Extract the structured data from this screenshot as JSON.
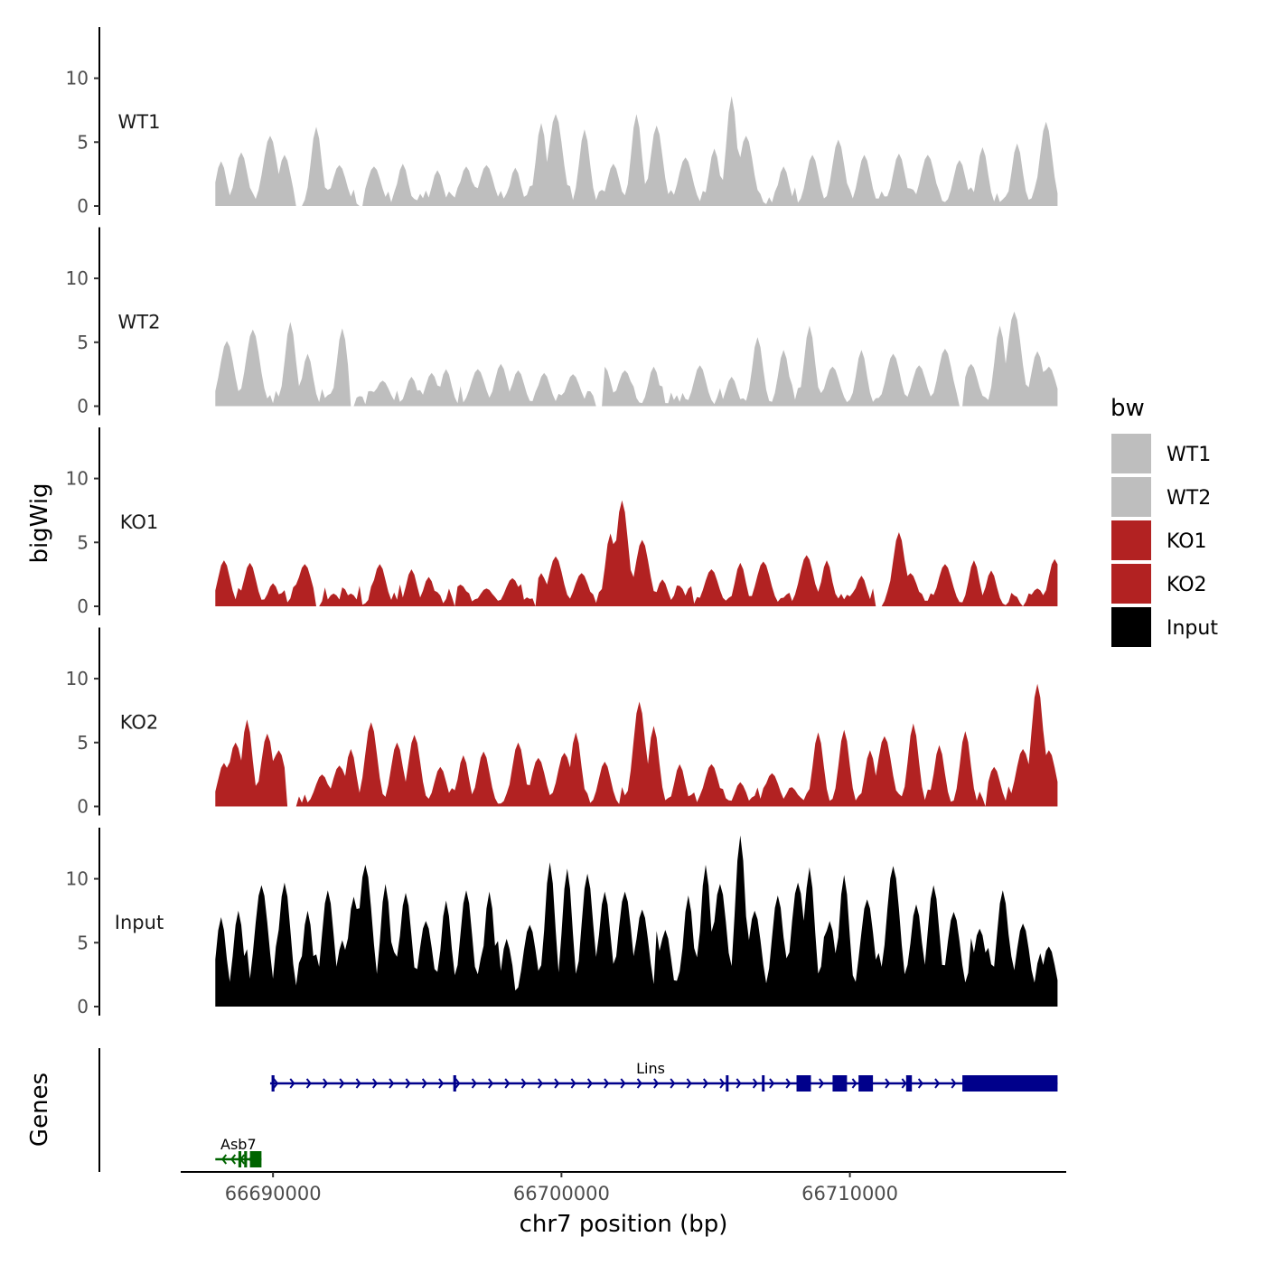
{
  "chart_data": {
    "type": "area",
    "title": "",
    "ylabel": "bigWig",
    "xlabel": "chr7 position (bp)",
    "xlim": [
      66686800,
      66717500
    ],
    "x_range_data": [
      66688000,
      66717200
    ],
    "ylim": [
      0,
      14
    ],
    "yticks": [
      0,
      5,
      10
    ],
    "xticks": [
      66690000,
      66700000,
      66710000
    ],
    "xtick_labels": [
      "66690000",
      "66700000",
      "66710000"
    ],
    "legend": {
      "title": "bw",
      "position": "right",
      "entries": [
        {
          "label": "WT1",
          "color": "#bebebe"
        },
        {
          "label": "WT2",
          "color": "#bebebe"
        },
        {
          "label": "KO1",
          "color": "#b22222"
        },
        {
          "label": "KO2",
          "color": "#b22222"
        },
        {
          "label": "Input",
          "color": "#000000"
        }
      ]
    },
    "tracks": [
      {
        "name": "WT1",
        "color": "#bebebe",
        "peaks": [
          [
            66688200,
            3.5
          ],
          [
            66688900,
            4.2
          ],
          [
            66689900,
            5.5
          ],
          [
            66690400,
            4.0
          ],
          [
            66691500,
            6.2
          ],
          [
            66692300,
            3.2
          ],
          [
            66693500,
            3.1
          ],
          [
            66694500,
            3.3
          ],
          [
            66695700,
            2.8
          ],
          [
            66696700,
            3.1
          ],
          [
            66697400,
            3.2
          ],
          [
            66698400,
            3.0
          ],
          [
            66699300,
            6.5
          ],
          [
            66699800,
            7.2
          ],
          [
            66700800,
            6.0
          ],
          [
            66701800,
            3.3
          ],
          [
            66702600,
            7.2
          ],
          [
            66703300,
            6.3
          ],
          [
            66704300,
            3.8
          ],
          [
            66705300,
            4.5
          ],
          [
            66705900,
            8.6
          ],
          [
            66706400,
            5.5
          ],
          [
            66707700,
            3.1
          ],
          [
            66708700,
            4.0
          ],
          [
            66709600,
            5.2
          ],
          [
            66710500,
            4.0
          ],
          [
            66711700,
            4.1
          ],
          [
            66712700,
            4.0
          ],
          [
            66713800,
            3.6
          ],
          [
            66714600,
            4.6
          ],
          [
            66715800,
            4.9
          ],
          [
            66716800,
            6.6
          ]
        ],
        "gaps": [
          [
            66690700,
            66691100
          ],
          [
            66692900,
            66693200
          ]
        ]
      },
      {
        "name": "WT2",
        "color": "#bebebe",
        "peaks": [
          [
            66688400,
            5.1
          ],
          [
            66689300,
            6.0
          ],
          [
            66690600,
            6.6
          ],
          [
            66691200,
            4.1
          ],
          [
            66692400,
            6.1
          ],
          [
            66693800,
            2.0
          ],
          [
            66694800,
            2.3
          ],
          [
            66695500,
            2.6
          ],
          [
            66696000,
            2.9
          ],
          [
            66697100,
            2.9
          ],
          [
            66697900,
            3.3
          ],
          [
            66698500,
            2.8
          ],
          [
            66699400,
            2.6
          ],
          [
            66700400,
            2.5
          ],
          [
            66701500,
            3.1
          ],
          [
            66702200,
            2.8
          ],
          [
            66703200,
            3.1
          ],
          [
            66704800,
            3.2
          ],
          [
            66705900,
            2.3
          ],
          [
            66706800,
            5.4
          ],
          [
            66707700,
            4.4
          ],
          [
            66708600,
            6.3
          ],
          [
            66709400,
            3.1
          ],
          [
            66710400,
            4.4
          ],
          [
            66711500,
            4.1
          ],
          [
            66712400,
            3.2
          ],
          [
            66713300,
            4.5
          ],
          [
            66714200,
            3.3
          ],
          [
            66715200,
            6.3
          ],
          [
            66715700,
            7.4
          ],
          [
            66716500,
            4.3
          ],
          [
            66716900,
            3.1
          ]
        ],
        "gaps": [
          [
            66690000,
            66690000
          ],
          [
            66692600,
            66692900
          ],
          [
            66701100,
            66701500
          ],
          [
            66713700,
            66714000
          ]
        ]
      },
      {
        "name": "KO1",
        "color": "#b22222",
        "peaks": [
          [
            66688300,
            3.6
          ],
          [
            66689200,
            3.4
          ],
          [
            66690000,
            1.8
          ],
          [
            66690900,
            2.0
          ],
          [
            66691100,
            3.3
          ],
          [
            66692100,
            1.0
          ],
          [
            66692700,
            1.0
          ],
          [
            66693700,
            3.3
          ],
          [
            66694800,
            2.9
          ],
          [
            66695400,
            2.3
          ],
          [
            66696500,
            1.7
          ],
          [
            66697400,
            1.4
          ],
          [
            66698300,
            2.2
          ],
          [
            66699300,
            2.6
          ],
          [
            66699800,
            3.9
          ],
          [
            66700700,
            2.6
          ],
          [
            66701700,
            5.7
          ],
          [
            66702100,
            8.3
          ],
          [
            66702800,
            5.2
          ],
          [
            66703500,
            2.1
          ],
          [
            66704100,
            1.6
          ],
          [
            66705200,
            2.9
          ],
          [
            66706200,
            3.4
          ],
          [
            66707000,
            3.5
          ],
          [
            66708500,
            4.0
          ],
          [
            66709200,
            3.6
          ],
          [
            66710400,
            2.4
          ],
          [
            66711700,
            5.8
          ],
          [
            66712100,
            2.6
          ],
          [
            66713300,
            3.3
          ],
          [
            66714300,
            3.6
          ],
          [
            66714900,
            2.8
          ],
          [
            66716500,
            1.4
          ],
          [
            66717100,
            3.7
          ]
        ],
        "gaps": [
          [
            66691400,
            66691700
          ],
          [
            66693000,
            66693100
          ],
          [
            66696200,
            66696400
          ],
          [
            66699000,
            66699200
          ],
          [
            66710800,
            66711200
          ],
          [
            66715900,
            66716100
          ]
        ]
      },
      {
        "name": "KO2",
        "color": "#b22222",
        "peaks": [
          [
            66688300,
            3.4
          ],
          [
            66688700,
            5.0
          ],
          [
            66689100,
            6.8
          ],
          [
            66689800,
            5.7
          ],
          [
            66690200,
            4.4
          ],
          [
            66691700,
            2.5
          ],
          [
            66692300,
            3.2
          ],
          [
            66692700,
            4.5
          ],
          [
            66693400,
            6.6
          ],
          [
            66694300,
            5.0
          ],
          [
            66694900,
            5.6
          ],
          [
            66695800,
            3.1
          ],
          [
            66696600,
            4.0
          ],
          [
            66697300,
            4.3
          ],
          [
            66698500,
            5.0
          ],
          [
            66699200,
            3.8
          ],
          [
            66700100,
            4.2
          ],
          [
            66700500,
            5.8
          ],
          [
            66701500,
            3.5
          ],
          [
            66702700,
            8.2
          ],
          [
            66703200,
            6.3
          ],
          [
            66704100,
            3.3
          ],
          [
            66705200,
            3.3
          ],
          [
            66706200,
            1.9
          ],
          [
            66707300,
            2.6
          ],
          [
            66708000,
            1.5
          ],
          [
            66708900,
            5.8
          ],
          [
            66709800,
            6.0
          ],
          [
            66710700,
            4.4
          ],
          [
            66711200,
            5.5
          ],
          [
            66712200,
            6.5
          ],
          [
            66713100,
            4.8
          ],
          [
            66714000,
            5.9
          ],
          [
            66715000,
            3.1
          ],
          [
            66716000,
            4.5
          ],
          [
            66716500,
            9.6
          ],
          [
            66716900,
            4.4
          ]
        ],
        "gaps": [
          [
            66690400,
            66690900
          ],
          [
            66708700,
            66708800
          ],
          [
            66714600,
            66714800
          ]
        ]
      },
      {
        "name": "Input",
        "color": "#000000",
        "peaks": [
          [
            66688200,
            7.0
          ],
          [
            66688800,
            7.5
          ],
          [
            66689600,
            9.5
          ],
          [
            66690400,
            9.7
          ],
          [
            66690600,
            3.0
          ],
          [
            66691200,
            7.5
          ],
          [
            66691900,
            9.1
          ],
          [
            66692400,
            5.2
          ],
          [
            66692800,
            8.6
          ],
          [
            66693200,
            11.1
          ],
          [
            66693900,
            9.6
          ],
          [
            66694600,
            8.9
          ],
          [
            66695300,
            6.7
          ],
          [
            66696000,
            8.3
          ],
          [
            66696700,
            9.1
          ],
          [
            66697500,
            9.0
          ],
          [
            66698100,
            5.3
          ],
          [
            66698900,
            6.4
          ],
          [
            66699600,
            11.3
          ],
          [
            66700200,
            10.8
          ],
          [
            66700900,
            10.4
          ],
          [
            66701500,
            9.0
          ],
          [
            66702200,
            9.0
          ],
          [
            66702800,
            7.6
          ],
          [
            66703600,
            6.0
          ],
          [
            66704400,
            8.7
          ],
          [
            66705000,
            11.1
          ],
          [
            66705500,
            9.6
          ],
          [
            66706200,
            13.4
          ],
          [
            66706700,
            7.5
          ],
          [
            66707500,
            8.7
          ],
          [
            66708200,
            9.7
          ],
          [
            66708600,
            10.9
          ],
          [
            66709300,
            6.7
          ],
          [
            66709800,
            10.3
          ],
          [
            66710600,
            8.4
          ],
          [
            66711500,
            11.0
          ],
          [
            66712300,
            8.0
          ],
          [
            66712900,
            9.5
          ],
          [
            66713600,
            7.4
          ],
          [
            66714500,
            6.1
          ],
          [
            66715300,
            9.1
          ],
          [
            66716000,
            6.5
          ],
          [
            66716900,
            4.7
          ]
        ],
        "gaps": []
      }
    ],
    "genes": {
      "label": "Genes",
      "items": [
        {
          "name": "Asb7",
          "strand": "-",
          "color": "#006400",
          "start": 66688000,
          "end": 66689600,
          "exons": [
            [
              66688800,
              66688900
            ],
            [
              66689000,
              66689100
            ],
            [
              66689200,
              66689600
            ]
          ]
        },
        {
          "name": "Lins",
          "strand": "+",
          "color": "#00008b",
          "start": 66689900,
          "end": 66717200,
          "exons": [
            [
              66689950,
              66690050
            ],
            [
              66696250,
              66696350
            ],
            [
              66705700,
              66705750
            ],
            [
              66706950,
              66707000
            ],
            [
              66708150,
              66708650
            ],
            [
              66709400,
              66709900
            ],
            [
              66710300,
              66710800
            ],
            [
              66711950,
              66712150
            ],
            [
              66713900,
              66717200
            ]
          ]
        }
      ]
    }
  }
}
